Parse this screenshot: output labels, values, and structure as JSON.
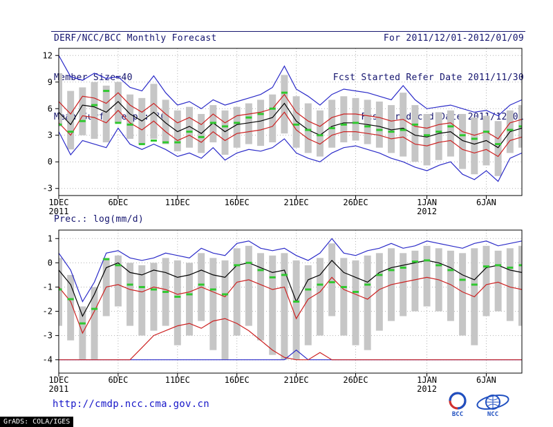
{
  "header": {
    "title": "DERF/NCC/BCC Monthly Forecast",
    "member_size": "Member Size=40",
    "variable_label": "Mean Surf. Temp.: °C",
    "for_range": "For 2011/12/01-2012/01/09",
    "refer_date": "Fcst Started Refer Date 2011/11/30",
    "produced_date": "Fcst Produced Date 2011/12/01"
  },
  "footer": {
    "url": "http://cmdp.ncc.cma.gov.cn",
    "bcc_logo_label": "BCC",
    "ncc_logo_label": "NCC",
    "grads_credit": "GrADS: COLA/IGES"
  },
  "colors": {
    "header_navy": "#14146e",
    "line_blue": "#2929c8",
    "line_red": "#cc2020",
    "line_black": "#000000",
    "obs_green": "#2fc82f",
    "bar_gray": "#c6c6c6",
    "url_blue": "#1616c8"
  },
  "chart_data": [
    {
      "type": "line",
      "name": "mean-surface-temperature",
      "title": "Mean Surf. Temp.: °C",
      "ylabel": "°C",
      "n": 40,
      "ylim": [
        -3.8,
        12.8
      ],
      "yticks": [
        12,
        9,
        6,
        3,
        0,
        -3
      ],
      "xticks": [
        {
          "i": 0,
          "label": "1DEC",
          "year": "2011"
        },
        {
          "i": 5,
          "label": "6DEC"
        },
        {
          "i": 10,
          "label": "11DEC"
        },
        {
          "i": 15,
          "label": "16DEC"
        },
        {
          "i": 20,
          "label": "21DEC"
        },
        {
          "i": 25,
          "label": "26DEC"
        },
        {
          "i": 31,
          "label": "1JAN",
          "year": "2012"
        },
        {
          "i": 36,
          "label": "6JAN"
        }
      ],
      "bars": {
        "name": "ensemble-spread",
        "color": "#c6c6c6",
        "high": [
          10.0,
          8.0,
          8.4,
          9.0,
          8.6,
          9.0,
          7.6,
          7.2,
          8.8,
          7.0,
          5.8,
          6.2,
          5.4,
          6.4,
          5.8,
          6.2,
          6.6,
          7.0,
          7.6,
          9.8,
          7.4,
          6.6,
          5.8,
          7.0,
          7.4,
          7.2,
          7.0,
          6.8,
          6.4,
          7.8,
          6.4,
          5.4,
          5.6,
          5.8,
          5.4,
          5.0,
          5.2,
          4.6,
          5.8,
          6.4
        ],
        "low": [
          4.0,
          1.4,
          3.0,
          2.6,
          2.2,
          4.4,
          2.6,
          2.0,
          2.6,
          2.0,
          1.2,
          1.6,
          1.0,
          2.2,
          0.8,
          1.6,
          2.0,
          1.8,
          2.2,
          3.2,
          1.6,
          1.0,
          0.6,
          1.6,
          2.2,
          2.4,
          2.0,
          1.6,
          1.0,
          0.6,
          0.0,
          -0.4,
          0.2,
          0.6,
          -0.8,
          -1.4,
          -0.4,
          -1.6,
          1.0,
          1.6
        ]
      },
      "series": [
        {
          "name": "ensemble-max",
          "color": "#2929c8",
          "values": [
            12.0,
            9.6,
            9.2,
            10.0,
            9.4,
            9.6,
            8.4,
            8.0,
            9.7,
            7.8,
            6.4,
            6.8,
            6.0,
            7.0,
            6.4,
            6.8,
            7.2,
            7.6,
            8.4,
            10.8,
            8.2,
            7.4,
            6.4,
            7.6,
            8.2,
            8.0,
            7.8,
            7.4,
            7.0,
            8.6,
            7.0,
            6.0,
            6.2,
            6.4,
            6.0,
            5.6,
            5.8,
            5.2,
            6.4,
            7.0
          ]
        },
        {
          "name": "ensemble-min",
          "color": "#2929c8",
          "values": [
            3.4,
            0.8,
            2.4,
            2.0,
            1.6,
            3.8,
            2.0,
            1.4,
            2.0,
            1.4,
            0.6,
            1.0,
            0.4,
            1.6,
            0.2,
            1.0,
            1.4,
            1.2,
            1.6,
            2.6,
            1.0,
            0.4,
            0.0,
            1.0,
            1.6,
            1.8,
            1.4,
            1.0,
            0.4,
            0.0,
            -0.6,
            -1.0,
            -0.4,
            0.0,
            -1.4,
            -2.0,
            -1.0,
            -2.2,
            0.4,
            1.0
          ]
        },
        {
          "name": "upper-quartile",
          "color": "#cc2020",
          "values": [
            6.8,
            5.4,
            7.4,
            7.2,
            6.6,
            7.8,
            6.4,
            5.6,
            6.6,
            5.4,
            4.4,
            5.0,
            4.2,
            5.4,
            4.4,
            5.2,
            5.4,
            5.6,
            6.0,
            7.6,
            5.6,
            4.6,
            4.0,
            5.0,
            5.4,
            5.4,
            5.2,
            5.0,
            4.6,
            4.8,
            4.0,
            3.8,
            4.2,
            4.4,
            3.4,
            3.0,
            3.4,
            2.6,
            4.4,
            4.8
          ]
        },
        {
          "name": "lower-quartile",
          "color": "#cc2020",
          "values": [
            4.4,
            3.0,
            5.2,
            5.0,
            4.4,
            5.8,
            4.4,
            3.6,
            4.6,
            3.4,
            2.4,
            3.0,
            2.2,
            3.4,
            2.4,
            3.2,
            3.4,
            3.6,
            4.0,
            5.6,
            3.6,
            2.6,
            2.0,
            3.0,
            3.4,
            3.4,
            3.2,
            3.0,
            2.6,
            2.8,
            2.0,
            1.8,
            2.2,
            2.4,
            1.4,
            1.0,
            1.4,
            0.6,
            2.4,
            2.8
          ]
        },
        {
          "name": "ensemble-mean",
          "color": "#000000",
          "values": [
            5.6,
            4.2,
            6.4,
            6.2,
            5.6,
            6.8,
            5.4,
            4.6,
            5.6,
            4.4,
            3.4,
            4.0,
            3.2,
            4.4,
            3.4,
            4.2,
            4.4,
            4.6,
            5.0,
            6.6,
            4.6,
            3.6,
            3.0,
            4.0,
            4.4,
            4.4,
            4.2,
            4.0,
            3.6,
            3.8,
            3.0,
            2.8,
            3.2,
            3.4,
            2.4,
            2.0,
            2.4,
            1.6,
            3.4,
            3.8
          ]
        }
      ],
      "markers": {
        "name": "observation",
        "color": "#2fc82f",
        "values": [
          4.2,
          3.4,
          4.6,
          6.4,
          8.0,
          4.4,
          4.2,
          2.0,
          2.4,
          2.2,
          2.2,
          3.4,
          2.8,
          4.4,
          4.0,
          4.4,
          5.0,
          5.4,
          6.0,
          7.8,
          4.2,
          3.6,
          3.0,
          3.8,
          4.2,
          4.4,
          4.0,
          3.6,
          3.4,
          3.6,
          4.2,
          3.0,
          3.4,
          4.0,
          3.0,
          2.6,
          3.4,
          2.0,
          3.6,
          4.0
        ]
      }
    },
    {
      "type": "line",
      "name": "precipitation",
      "title": "Prec.: log(mm/d)",
      "ylabel": "log(mm/d)",
      "n": 40,
      "ylim": [
        -4.55,
        1.35
      ],
      "yticks": [
        1,
        0,
        -1,
        -2,
        -3,
        -4
      ],
      "xticks": [
        {
          "i": 0,
          "label": "1DEC",
          "year": "2011"
        },
        {
          "i": 5,
          "label": "6DEC"
        },
        {
          "i": 10,
          "label": "11DEC"
        },
        {
          "i": 15,
          "label": "16DEC"
        },
        {
          "i": 20,
          "label": "21DEC"
        },
        {
          "i": 25,
          "label": "26DEC"
        },
        {
          "i": 31,
          "label": "1JAN",
          "year": "2012"
        },
        {
          "i": 36,
          "label": "6JAN"
        }
      ],
      "bars": {
        "name": "ensemble-spread",
        "color": "#c6c6c6",
        "high": [
          0.2,
          -0.5,
          -1.8,
          -1.0,
          0.2,
          0.3,
          0.0,
          -0.1,
          0.0,
          0.2,
          0.1,
          0.0,
          0.4,
          0.2,
          0.1,
          0.6,
          0.7,
          0.4,
          0.3,
          0.4,
          0.1,
          -0.1,
          0.2,
          0.8,
          0.2,
          0.1,
          0.3,
          0.4,
          0.6,
          0.4,
          0.5,
          0.7,
          0.6,
          0.5,
          0.4,
          0.6,
          0.7,
          0.5,
          0.6,
          0.7
        ],
        "low": [
          -2.6,
          -3.2,
          -4.0,
          -4.0,
          -2.2,
          -1.8,
          -2.6,
          -3.0,
          -2.8,
          -2.6,
          -3.4,
          -3.0,
          -2.4,
          -3.6,
          -4.0,
          -3.0,
          -2.6,
          -3.2,
          -3.8,
          -4.0,
          -4.0,
          -3.4,
          -3.0,
          -2.2,
          -3.0,
          -3.4,
          -3.6,
          -2.8,
          -2.4,
          -2.2,
          -2.0,
          -1.8,
          -2.0,
          -2.4,
          -3.0,
          -3.4,
          -2.2,
          -2.0,
          -2.4,
          -2.6
        ]
      },
      "series": [
        {
          "name": "ensemble-max",
          "color": "#2929c8",
          "values": [
            0.4,
            -0.3,
            -1.6,
            -0.8,
            0.4,
            0.5,
            0.2,
            0.1,
            0.2,
            0.4,
            0.3,
            0.2,
            0.6,
            0.4,
            0.3,
            0.8,
            0.9,
            0.6,
            0.5,
            0.6,
            0.3,
            0.1,
            0.4,
            1.0,
            0.4,
            0.3,
            0.5,
            0.6,
            0.8,
            0.6,
            0.7,
            0.9,
            0.8,
            0.7,
            0.6,
            0.8,
            0.9,
            0.7,
            0.8,
            0.9
          ]
        },
        {
          "name": "ensemble-min",
          "color": "#2929c8",
          "values": [
            -4.0,
            -4.0,
            -4.0,
            -4.0,
            -4.0,
            -4.0,
            -4.0,
            -4.0,
            -4.0,
            -4.0,
            -4.0,
            -4.0,
            -4.0,
            -4.0,
            -4.0,
            -4.0,
            -4.0,
            -4.0,
            -4.0,
            -4.0,
            -3.6,
            -4.0,
            -4.0,
            -4.0,
            -4.0,
            -4.0,
            -4.0,
            -4.0,
            -4.0,
            -4.0,
            -4.0,
            -4.0,
            -4.0,
            -4.0,
            -4.0,
            -4.0,
            -4.0,
            -4.0,
            -4.0,
            -4.0
          ]
        },
        {
          "name": "upper-quartile",
          "color": "#cc2020",
          "values": [
            -1.0,
            -1.6,
            -2.9,
            -2.0,
            -1.0,
            -0.9,
            -1.1,
            -1.2,
            -1.0,
            -1.1,
            -1.3,
            -1.2,
            -1.0,
            -1.2,
            -1.4,
            -0.8,
            -0.7,
            -0.9,
            -1.1,
            -1.0,
            -2.3,
            -1.5,
            -1.2,
            -0.6,
            -1.1,
            -1.3,
            -1.5,
            -1.1,
            -0.9,
            -0.8,
            -0.7,
            -0.6,
            -0.7,
            -0.9,
            -1.2,
            -1.4,
            -0.9,
            -0.8,
            -1.0,
            -1.1
          ]
        },
        {
          "name": "lower-quartile",
          "color": "#cc2020",
          "values": [
            -4.0,
            -4.0,
            -4.0,
            -4.0,
            -4.0,
            -4.0,
            -4.0,
            -3.5,
            -3.0,
            -2.8,
            -2.6,
            -2.5,
            -2.7,
            -2.4,
            -2.3,
            -2.5,
            -2.8,
            -3.2,
            -3.6,
            -3.9,
            -4.0,
            -4.0,
            -3.7,
            -4.0,
            -4.0,
            -4.0,
            -4.0,
            -4.0,
            -4.0,
            -4.0,
            -4.0,
            -4.0,
            -4.0,
            -4.0,
            -4.0,
            -4.0,
            -4.0,
            -4.0,
            -4.0,
            -4.0
          ]
        },
        {
          "name": "ensemble-mean",
          "color": "#000000",
          "values": [
            -0.3,
            -0.9,
            -2.2,
            -1.3,
            -0.2,
            0.0,
            -0.4,
            -0.5,
            -0.3,
            -0.4,
            -0.6,
            -0.5,
            -0.3,
            -0.5,
            -0.6,
            -0.1,
            0.0,
            -0.2,
            -0.4,
            -0.3,
            -1.6,
            -0.7,
            -0.5,
            0.1,
            -0.4,
            -0.6,
            -0.8,
            -0.4,
            -0.2,
            -0.1,
            0.0,
            0.1,
            0.0,
            -0.2,
            -0.5,
            -0.7,
            -0.2,
            -0.1,
            -0.3,
            -0.4
          ]
        }
      ],
      "markers": {
        "name": "observation",
        "color": "#2fc82f",
        "values": [
          -1.1,
          -1.5,
          -2.5,
          -1.9,
          0.15,
          -0.1,
          -0.9,
          -1.0,
          -1.1,
          -1.2,
          -1.4,
          -1.3,
          -0.9,
          -1.1,
          -1.3,
          -0.1,
          0.0,
          -0.3,
          -0.6,
          -0.5,
          -1.6,
          -1.1,
          -0.9,
          -0.8,
          -1.0,
          -1.2,
          -0.9,
          -0.5,
          -0.3,
          -0.2,
          0.05,
          0.1,
          -0.1,
          -0.3,
          -0.7,
          -0.9,
          -0.15,
          -0.1,
          -0.2,
          -0.1
        ]
      }
    }
  ]
}
